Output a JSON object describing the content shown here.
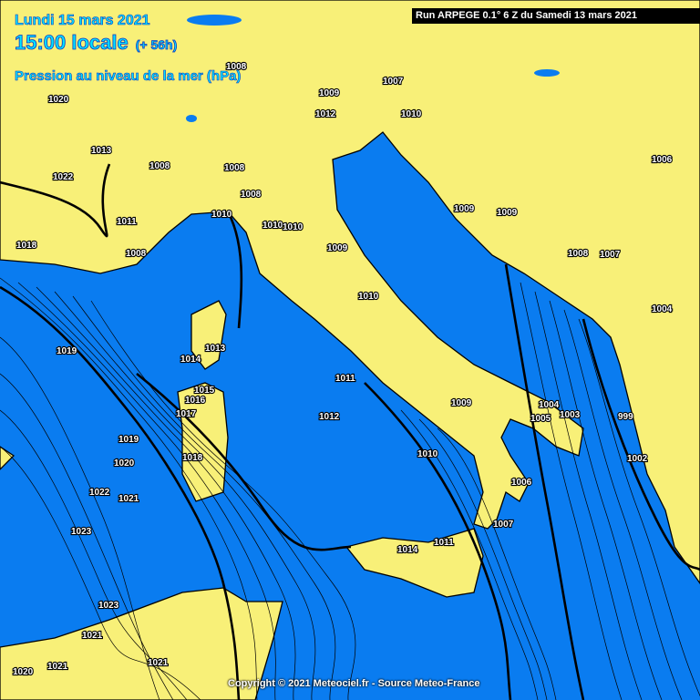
{
  "header": {
    "date": "Lundi 15 mars 2021",
    "time": "15:00 locale",
    "lead": "(+ 56h)",
    "field": "Pression au niveau de la mer (hPa)",
    "run": "Run ARPEGE 0.1° 6 Z du Samedi 13 mars 2021"
  },
  "footer": {
    "copyright": "Copyright © 2021 Meteociel.fr - Source Meteo-France"
  },
  "colors": {
    "sea": "#0a7cf0",
    "land": "#f8f078",
    "isobar": "#000000",
    "title": "#00e5ff"
  },
  "isobar_labels": [
    "1019",
    "1020",
    "1021",
    "1022",
    "1023",
    "1012",
    "1011",
    "1010",
    "1009",
    "1005",
    "1004",
    "1003",
    "999",
    "1002",
    "1006",
    "1007",
    "1014",
    "1018",
    "1008",
    "1010",
    "1010",
    "1009",
    "1008",
    "1008",
    "1008",
    "1022",
    "1020",
    "1023",
    "1019",
    "1018",
    "1017",
    "1016",
    "1015",
    "1014",
    "1013",
    "1006",
    "1008",
    "1007",
    "1004",
    "1009",
    "1012",
    "1011",
    "1010",
    "1013",
    "1021",
    "1021",
    "1020",
    "1021",
    "1011",
    "1010",
    "1008",
    "1007",
    "1009",
    "1010",
    "1009"
  ]
}
